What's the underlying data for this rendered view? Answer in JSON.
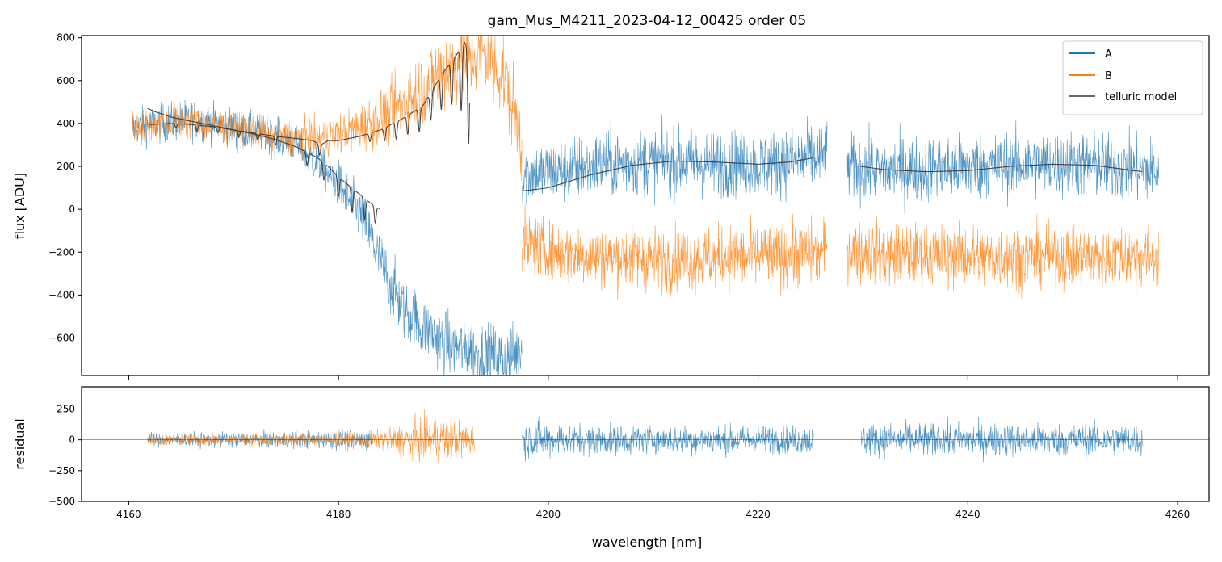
{
  "chart_data": [
    {
      "type": "line",
      "title": "gam_Mus_M4211_2023-04-12_00425  order 05",
      "xlabel": "",
      "ylabel": "flux [ADU]",
      "xlim": [
        4155.5,
        4263.0
      ],
      "ylim": [
        -775,
        810
      ],
      "yticks": [
        -600,
        -400,
        -200,
        0,
        200,
        400,
        600,
        800
      ],
      "yticklabels": [
        "−600",
        "−400",
        "−200",
        "0",
        "200",
        "400",
        "600",
        "800"
      ],
      "xticks": [
        4160,
        4180,
        4200,
        4220,
        4240,
        4260
      ],
      "legend": {
        "position": "top-right",
        "entries": [
          "A",
          "B",
          "telluric model"
        ]
      },
      "series": [
        {
          "name": "A",
          "color": "#1f77b4",
          "alpha": 0.8,
          "segments": [
            {
              "x": [
                4160.3,
                4166,
                4172,
                4176,
                4178,
                4180,
                4181,
                4182,
                4183,
                4184,
                4185,
                4186,
                4188,
                4190,
                4192,
                4194,
                4196,
                4197.5
              ],
              "y": [
                380,
                420,
                360,
                300,
                210,
                120,
                40,
                -20,
                -120,
                -250,
                -350,
                -450,
                -550,
                -620,
                -650,
                -680,
                -700,
                -650
              ],
              "noise": [
                110,
                120,
                110,
                110,
                120,
                140,
                150,
                160,
                170,
                180,
                190,
                190,
                190,
                190,
                190,
                190,
                190,
                180
              ]
            },
            {
              "x": [
                4197.5,
                4200,
                4205,
                4210,
                4215,
                4220,
                4226.6
              ],
              "y": [
                160,
                170,
                210,
                220,
                215,
                210,
                250
              ],
              "noise": [
                200,
                190,
                200,
                200,
                200,
                200,
                210
              ]
            },
            {
              "x": [
                4228.5,
                4232,
                4238,
                4244,
                4250,
                4258.2
              ],
              "y": [
                200,
                185,
                190,
                205,
                210,
                180
              ],
              "noise": [
                200,
                200,
                200,
                200,
                200,
                200
              ]
            }
          ]
        },
        {
          "name": "B",
          "color": "#ff7f0e",
          "alpha": 0.8,
          "segments": [
            {
              "x": [
                4160.3,
                4165,
                4170,
                4175,
                4178,
                4180,
                4182,
                4184,
                4186,
                4188,
                4190,
                4192,
                4194,
                4196,
                4197.5
              ],
              "y": [
                380,
                410,
                380,
                340,
                330,
                350,
                380,
                430,
                480,
                560,
                650,
                700,
                720,
                600,
                300
              ],
              "noise": [
                100,
                110,
                100,
                100,
                110,
                120,
                140,
                170,
                200,
                230,
                260,
                260,
                260,
                260,
                250
              ]
            },
            {
              "x": [
                4197.5,
                4200,
                4205,
                4210,
                4215,
                4220,
                4226.6
              ],
              "y": [
                -150,
                -200,
                -220,
                -230,
                -230,
                -220,
                -200
              ],
              "noise": [
                190,
                180,
                190,
                190,
                190,
                190,
                200
              ]
            },
            {
              "x": [
                4228.5,
                4232,
                4238,
                4244,
                4250,
                4258.2
              ],
              "y": [
                -180,
                -210,
                -220,
                -220,
                -220,
                -220
              ],
              "noise": [
                190,
                190,
                190,
                190,
                190,
                190
              ]
            }
          ]
        },
        {
          "name": "telluric model",
          "color": "#333333",
          "alpha": 0.9,
          "segments": [
            {
              "x": [
                4161.8,
                4162.5,
                4164,
                4166,
                4168,
                4170,
                4172,
                4174,
                4176,
                4178,
                4179,
                4180,
                4181,
                4182,
                4183,
                4184
              ],
              "y": [
                470,
                455,
                430,
                410,
                390,
                370,
                350,
                325,
                290,
                240,
                200,
                150,
                110,
                70,
                30,
                0
              ],
              "dips": [
                [
                  4177,
                  60
                ],
                [
                  4178.6,
                  80
                ],
                [
                  4180,
                  90
                ],
                [
                  4181.3,
                  110
                ],
                [
                  4182.5,
                  100
                ],
                [
                  4183.5,
                  80
                ]
              ]
            },
            {
              "x": [
                4162,
                4164,
                4166,
                4168,
                4170,
                4172,
                4174,
                4176,
                4177.5,
                4178.3,
                4179,
                4180,
                4182,
                4184,
                4186,
                4188,
                4189,
                4190,
                4191,
                4192,
                4192.5
              ],
              "y": [
                395,
                400,
                395,
                385,
                370,
                355,
                340,
                330,
                320,
                300,
                320,
                320,
                340,
                370,
                420,
                480,
                560,
                640,
                700,
                780,
                740
              ],
              "dips": [
                [
                  4164.5,
                  20
                ],
                [
                  4166.5,
                  30
                ],
                [
                  4168.5,
                  25
                ],
                [
                  4170.5,
                  30
                ],
                [
                  4172.3,
                  30
                ],
                [
                  4174,
                  40
                ],
                [
                  4178.2,
                  50
                ],
                [
                  4183,
                  40
                ],
                [
                  4184.4,
                  60
                ],
                [
                  4185.5,
                  80
                ],
                [
                  4186.6,
                  90
                ],
                [
                  4187.7,
                  110
                ],
                [
                  4188.8,
                  130
                ],
                [
                  4189.8,
                  160
                ],
                [
                  4190.8,
                  200
                ],
                [
                  4191.7,
                  300
                ],
                [
                  4192.4,
                  450
                ]
              ]
            },
            {
              "x": [
                4197.5,
                4200,
                4204,
                4208,
                4212,
                4216,
                4220,
                4223,
                4225.3
              ],
              "y": [
                85,
                100,
                160,
                205,
                225,
                220,
                210,
                220,
                240
              ],
              "dips": []
            },
            {
              "x": [
                4229.8,
                4232,
                4236,
                4240,
                4244,
                4248,
                4252,
                4256.7
              ],
              "y": [
                200,
                185,
                175,
                180,
                200,
                210,
                205,
                175
              ],
              "dips": []
            }
          ]
        }
      ]
    },
    {
      "type": "line",
      "title": "",
      "xlabel": "wavelength [nm]",
      "ylabel": "residual",
      "xlim": [
        4155.5,
        4263.0
      ],
      "ylim": [
        -500,
        430
      ],
      "yticks": [
        -500,
        -250,
        0,
        250
      ],
      "yticklabels": [
        "−500",
        "−250",
        "0",
        "250"
      ],
      "xticks": [
        4160,
        4180,
        4200,
        4220,
        4240,
        4260
      ],
      "xticklabels": [
        "4160",
        "4180",
        "4200",
        "4220",
        "4240",
        "4260"
      ],
      "series": [
        {
          "name": "A",
          "color": "#1f77b4",
          "alpha": 0.8,
          "segments": [
            {
              "x": [
                4161.8,
                4170,
                4178,
                4183.3
              ],
              "y": [
                0,
                0,
                0,
                0
              ],
              "noise": [
                70,
                80,
                90,
                110
              ]
            },
            {
              "x": [
                4197.5,
                4199,
                4202,
                4210,
                4218,
                4225.3
              ],
              "y": [
                0,
                0,
                0,
                0,
                0,
                0
              ],
              "noise": [
                180,
                200,
                160,
                150,
                150,
                150
              ]
            },
            {
              "x": [
                4229.8,
                4235,
                4245,
                4256.7
              ],
              "y": [
                0,
                0,
                0,
                0
              ],
              "noise": [
                170,
                180,
                170,
                160
              ]
            }
          ]
        },
        {
          "name": "B",
          "color": "#ff7f0e",
          "alpha": 0.8,
          "segments": [
            {
              "x": [
                4161.8,
                4170,
                4178,
                4184,
                4187,
                4190,
                4193
              ],
              "y": [
                0,
                0,
                0,
                0,
                0,
                0,
                0
              ],
              "noise": [
                60,
                70,
                70,
                100,
                200,
                240,
                160
              ]
            }
          ]
        },
        {
          "name": "zero line",
          "color": "#000000",
          "alpha": 0.6,
          "segments": [
            {
              "x": [
                4155.5,
                4263.0
              ],
              "y": [
                0,
                0
              ]
            }
          ]
        }
      ]
    }
  ]
}
